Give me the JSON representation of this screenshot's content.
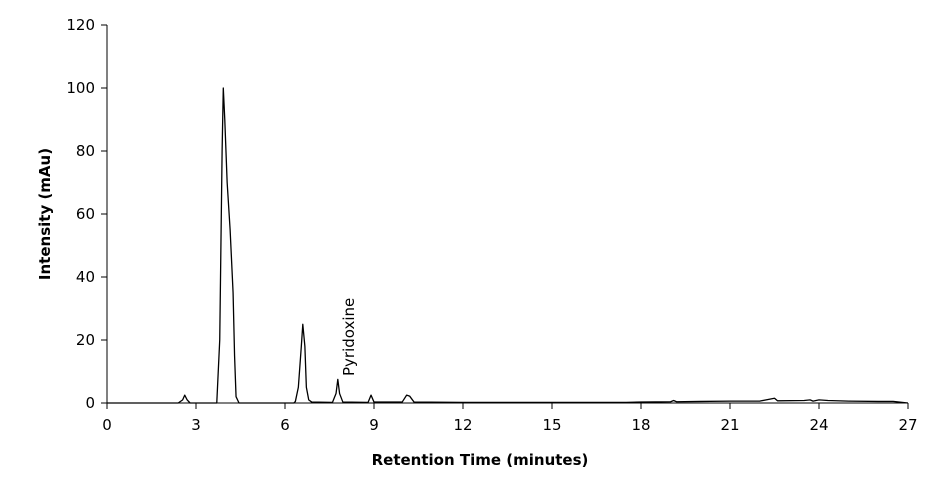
{
  "chart_data": {
    "type": "line",
    "xlabel": "Retention Time (minutes)",
    "ylabel": "Intensity (mAu)",
    "annotation": "Pyridoxine",
    "color": "#000000",
    "grid": false,
    "xlim": [
      0,
      27
    ],
    "xticks": [
      0,
      3,
      6,
      9,
      12,
      15,
      18,
      21,
      24,
      27
    ],
    "ylim": [
      0,
      120
    ],
    "yticks": [
      0,
      20,
      40,
      60,
      80,
      100,
      120
    ],
    "x": [
      0,
      2.4,
      2.55,
      2.62,
      2.7,
      2.8,
      3.7,
      3.8,
      3.88,
      3.92,
      3.97,
      4.05,
      4.15,
      4.25,
      4.3,
      4.35,
      4.45,
      6.3,
      6.35,
      6.45,
      6.55,
      6.6,
      6.67,
      6.72,
      6.8,
      6.9,
      7.6,
      7.72,
      7.78,
      7.84,
      7.95,
      8.8,
      8.9,
      9.0,
      9.95,
      10.1,
      10.2,
      10.35,
      12,
      15,
      17.5,
      18,
      19,
      19.1,
      19.2,
      20,
      21,
      22,
      22.5,
      22.6,
      23.5,
      23.7,
      23.8,
      24,
      24.3,
      25,
      26,
      26.5,
      27
    ],
    "values": [
      0,
      0,
      1,
      2.5,
      1,
      0,
      0,
      20,
      80,
      100,
      90,
      70,
      55,
      35,
      15,
      2,
      0,
      0,
      0.5,
      5,
      18,
      25,
      18,
      5,
      1,
      0.3,
      0.2,
      3,
      7.5,
      3,
      0.3,
      0.2,
      2.5,
      0.3,
      0.3,
      2.5,
      2.2,
      0.3,
      0.2,
      0.2,
      0.2,
      0.3,
      0.4,
      0.8,
      0.4,
      0.5,
      0.6,
      0.6,
      1.5,
      0.7,
      0.8,
      1,
      0.6,
      1,
      0.8,
      0.6,
      0.5,
      0.5,
      0
    ]
  }
}
